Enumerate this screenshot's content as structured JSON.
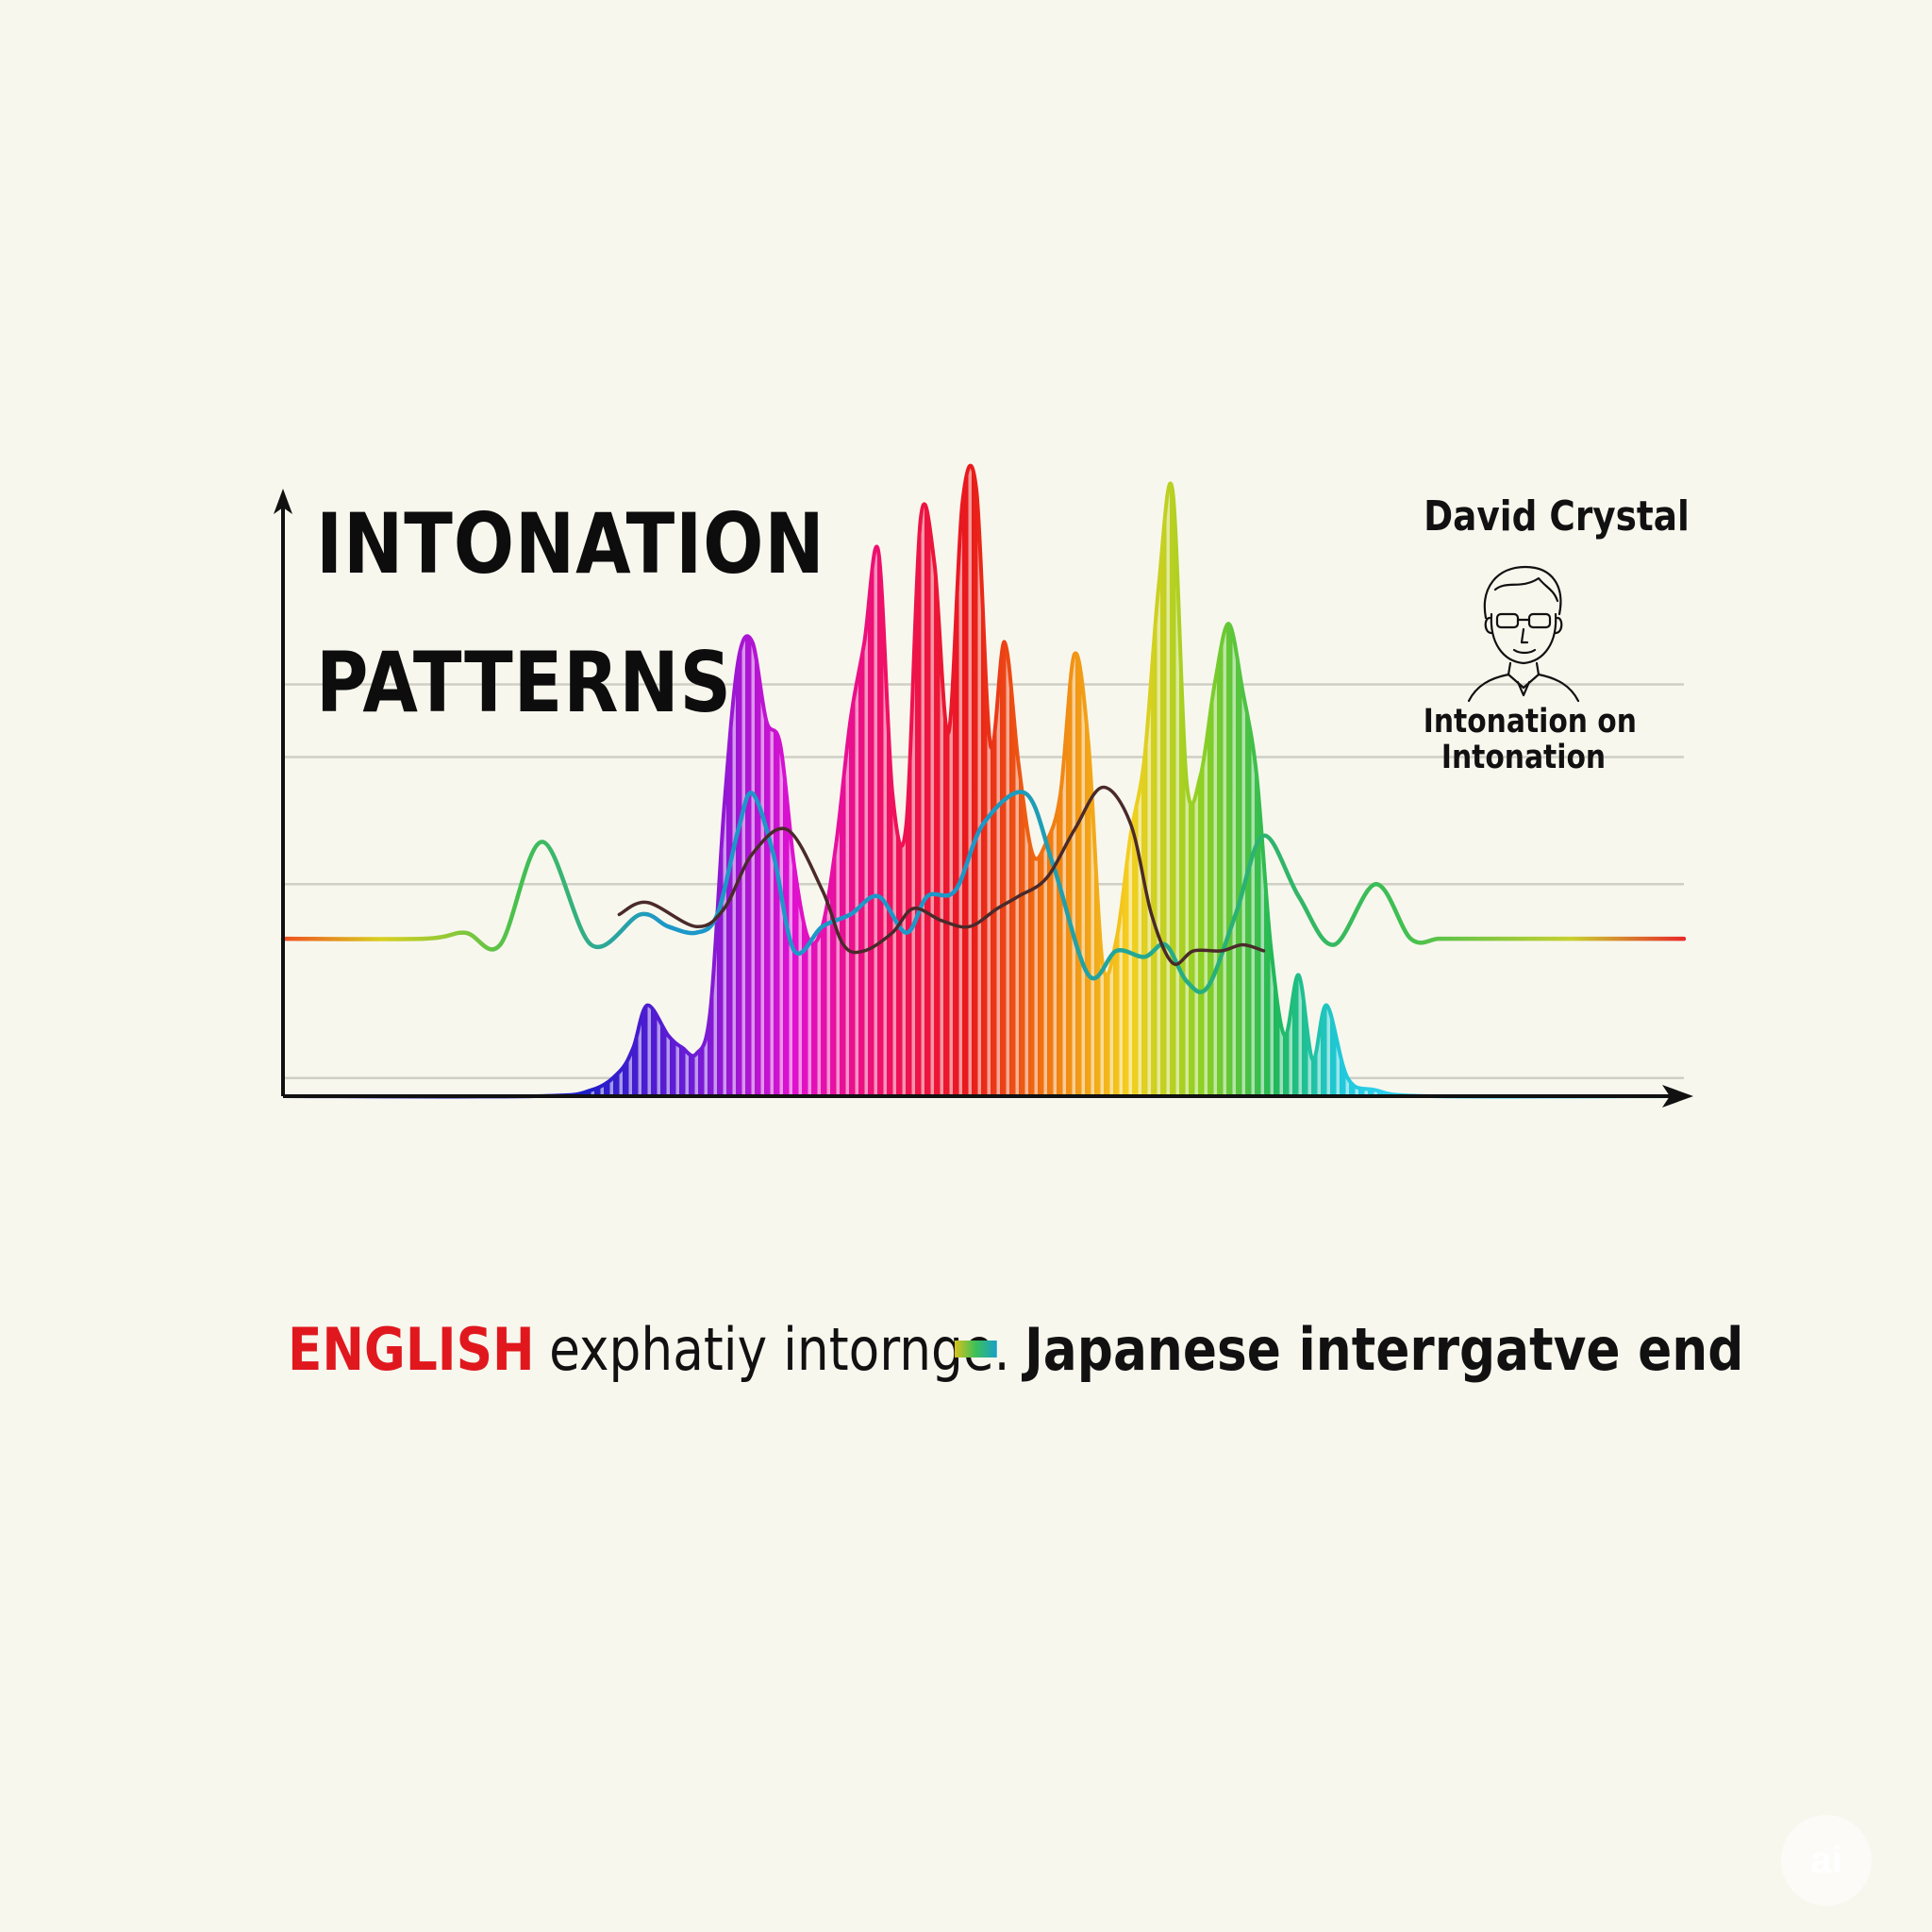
{
  "header": {
    "title_line_1": "INTONATION",
    "title_line_2": "PATTERNS",
    "author": "David Crystal",
    "book_line_1": "Intonation on",
    "book_line_2": "Intonation"
  },
  "legend": {
    "series_a_keyword": "ENGLISH",
    "series_a_text": "exphatiy intornge.",
    "series_b_text": "Japanese interrgatve end"
  },
  "watermark": "ai",
  "colors": {
    "background": "#f8f7ee",
    "axis": "#111111",
    "gridline": "#cfcfc6",
    "legend_red": "#e0181e",
    "pitch_line": "#4a2a2a"
  },
  "icons": [
    "portrait-sketch-icon",
    "gradient-swatch-icon"
  ],
  "chart_data": {
    "type": "area",
    "title": "INTONATION PATTERNS",
    "xlabel": "",
    "ylabel": "",
    "grid": true,
    "xlim": [
      0,
      100
    ],
    "ylim": [
      0,
      100
    ],
    "gridlines_y": [
      3,
      35,
      56,
      68
    ],
    "series": [
      {
        "name": "ENGLISH",
        "style": "rainbow-filled-peaks",
        "x": [
          0,
          18,
          22,
          24,
          25,
          26,
          27.5,
          28.5,
          29.5,
          30.5,
          31.5,
          32.5,
          33.5,
          34.5,
          35.5,
          36.5,
          37.5,
          38.5,
          39.5,
          40.5,
          41.5,
          42.5,
          43.5,
          44.5,
          45.5,
          46.5,
          47.5,
          48.5,
          49.5,
          50.5,
          51.5,
          52.5,
          53.5,
          54.5,
          55.5,
          56.5,
          57.5,
          58.5,
          59.5,
          60.5,
          61.5,
          62.5,
          63.5,
          64.5,
          65.5,
          66.5,
          67.5,
          68.5,
          69.5,
          70.5,
          71.5,
          72.5,
          73.5,
          74.5,
          76,
          78,
          82,
          100
        ],
        "values": [
          0,
          0,
          1,
          4,
          8,
          15,
          10,
          8,
          7,
          14,
          48,
          72,
          75,
          62,
          58,
          38,
          26,
          28,
          42,
          62,
          75,
          90,
          50,
          45,
          95,
          88,
          60,
          98,
          100,
          58,
          75,
          55,
          40,
          42,
          50,
          73,
          58,
          22,
          26,
          43,
          56,
          84,
          100,
          52,
          53,
          68,
          78,
          67,
          53,
          25,
          10,
          20,
          6,
          15,
          3,
          1,
          0,
          0
        ]
      },
      {
        "name": "Japanese interrgatve end",
        "style": "gradient-line",
        "x": [
          0,
          10,
          13,
          15.5,
          18.5,
          22,
          25.5,
          27.5,
          29.5,
          31,
          32.5,
          33.5,
          35,
          36.5,
          38.5,
          40.5,
          42.5,
          44.5,
          46,
          48,
          50,
          53,
          55,
          57.5,
          59.5,
          61.5,
          63,
          64.5,
          66,
          68,
          70,
          72.5,
          75,
          78,
          80.5,
          82.5,
          84.5,
          87.5,
          91,
          95,
          100
        ],
        "values": [
          26,
          26,
          27,
          25,
          42,
          25,
          30,
          28,
          27,
          30,
          44,
          50,
          40,
          24,
          28,
          30,
          33,
          27,
          33,
          34,
          45,
          50,
          38,
          20,
          24,
          23,
          25,
          19,
          18,
          30,
          43,
          33,
          25,
          35,
          26,
          26,
          26,
          26,
          26,
          26,
          26
        ]
      },
      {
        "name": "",
        "style": "dark-line",
        "x": [
          24,
          26,
          29.5,
          31.5,
          33.5,
          36,
          38.5,
          40,
          41.5,
          43.5,
          45,
          47,
          49,
          51,
          52.5,
          54.5,
          56.5,
          58.5,
          60.5,
          62,
          63.5,
          65,
          67,
          68.5,
          70
        ],
        "values": [
          30,
          32,
          28,
          31,
          40,
          44,
          34,
          25,
          24,
          27,
          31,
          29,
          28,
          31,
          33,
          36,
          44,
          51,
          45,
          30,
          22,
          24,
          24,
          25,
          24
        ]
      }
    ]
  }
}
